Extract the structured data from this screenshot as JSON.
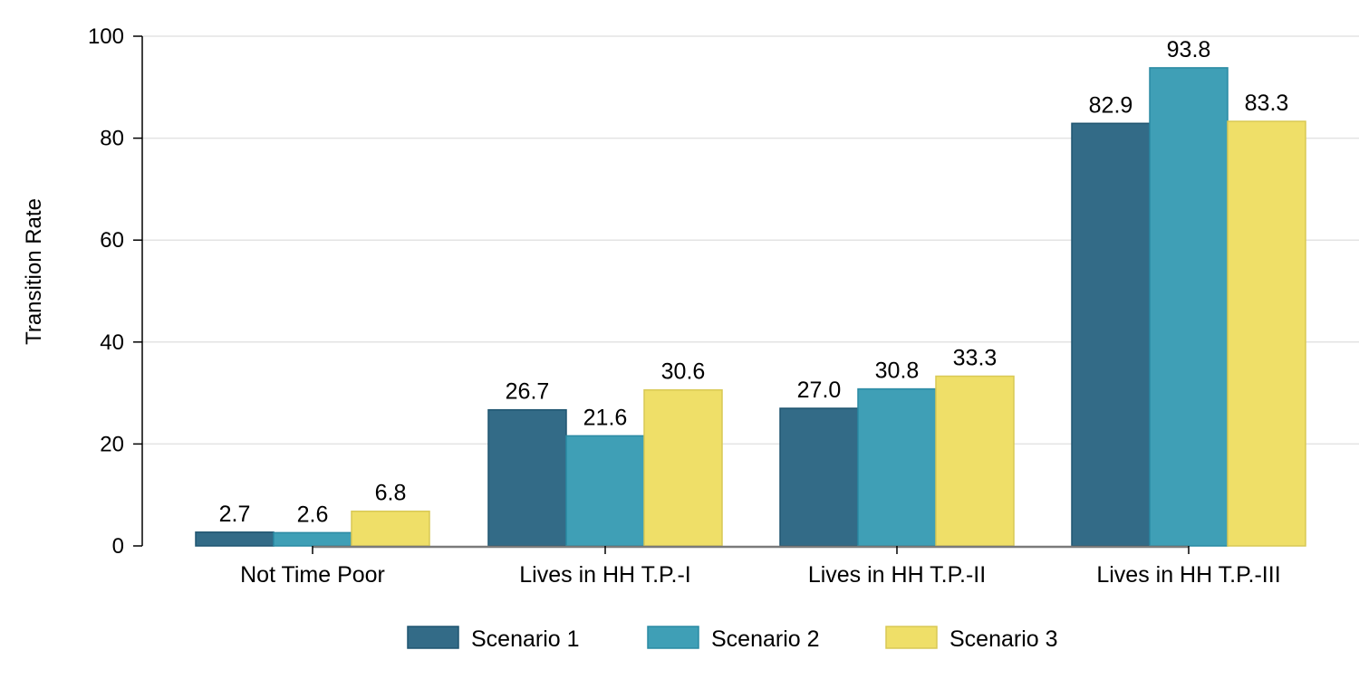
{
  "chart_data": {
    "type": "bar",
    "title": "",
    "xlabel": "",
    "ylabel": "Transition Rate",
    "ylim": [
      0,
      100
    ],
    "yticks": [
      0,
      20,
      40,
      60,
      80,
      100
    ],
    "grid": true,
    "legend_position": "bottom",
    "categories": [
      "Not Time Poor",
      "Lives in HH T.P.-I",
      "Lives in HH T.P.-II",
      "Lives in HH T.P.-III"
    ],
    "series": [
      {
        "name": "Scenario 1",
        "color": "#336b87",
        "stroke": "#1f5570",
        "values": [
          2.7,
          26.7,
          27.0,
          82.9
        ],
        "labels": [
          "2.7",
          "26.7",
          "27.0",
          "82.9"
        ]
      },
      {
        "name": "Scenario 2",
        "color": "#3f9fb6",
        "stroke": "#2a8aa3",
        "values": [
          2.6,
          21.6,
          30.8,
          93.8
        ],
        "labels": [
          "2.6",
          "21.6",
          "30.8",
          "93.8"
        ]
      },
      {
        "name": "Scenario 3",
        "color": "#efdf68",
        "stroke": "#d9c955",
        "values": [
          6.8,
          30.6,
          33.3,
          83.3
        ],
        "labels": [
          "6.8",
          "30.6",
          "33.3",
          "83.3"
        ]
      }
    ]
  }
}
